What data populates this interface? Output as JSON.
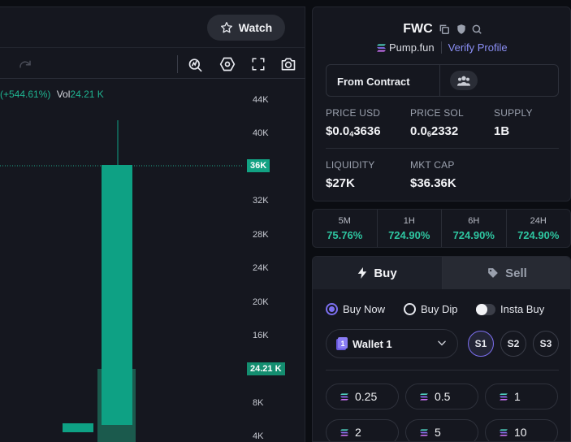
{
  "chart": {
    "watch_label": "Watch",
    "legend": {
      "change": "(+544.61%)",
      "vol_label": "Vol",
      "vol_value": "24.21 K"
    },
    "yticks": [
      "44K",
      "40K",
      "32K",
      "28K",
      "24K",
      "20K",
      "16K",
      "8K",
      "4K"
    ],
    "price_tag": "36K",
    "volume_tag": "24.21 K",
    "colors": {
      "up": "#0ea184",
      "price_tag_bg": "#12a283",
      "volume_tag_bg": "#148e70",
      "panel_bg": "#15171f"
    }
  },
  "token": {
    "name": "FWC",
    "source": "Pump.fun",
    "verify_label": "Verify Profile",
    "contract_label": "From Contract",
    "stats": {
      "price_usd": {
        "label": "PRICE USD",
        "main": "$0.0",
        "sub": "4",
        "rest": "3636"
      },
      "price_sol": {
        "label": "PRICE SOL",
        "main": "0.0",
        "sub": "6",
        "rest": "2332"
      },
      "supply": {
        "label": "SUPPLY",
        "value": "1B"
      },
      "liquidity": {
        "label": "LIQUIDITY",
        "value": "$27K"
      },
      "mkt_cap": {
        "label": "MKT CAP",
        "value": "$36.36K"
      }
    }
  },
  "timeframes": [
    {
      "label": "5M",
      "value": "75.76%"
    },
    {
      "label": "1H",
      "value": "724.90%"
    },
    {
      "label": "6H",
      "value": "724.90%"
    },
    {
      "label": "24H",
      "value": "724.90%"
    }
  ],
  "trade": {
    "buy_tab": "Buy",
    "sell_tab": "Sell",
    "options": {
      "buy_now": "Buy Now",
      "buy_dip": "Buy Dip",
      "insta_buy": "Insta Buy"
    },
    "wallet": {
      "badge": "1",
      "label": "Wallet 1"
    },
    "slots": [
      "S1",
      "S2",
      "S3"
    ],
    "amounts": [
      "0.25",
      "0.5",
      "1",
      "2",
      "5",
      "10"
    ]
  },
  "icons": [
    "star-icon",
    "redo-icon",
    "indicator-icon",
    "hexagon-settings-icon",
    "fullscreen-icon",
    "camera-icon",
    "copy-icon",
    "shield-icon",
    "search-icon",
    "solana-icon",
    "users-icon",
    "bolt-icon",
    "tag-icon",
    "wallet-icon",
    "chevron-down-icon"
  ]
}
